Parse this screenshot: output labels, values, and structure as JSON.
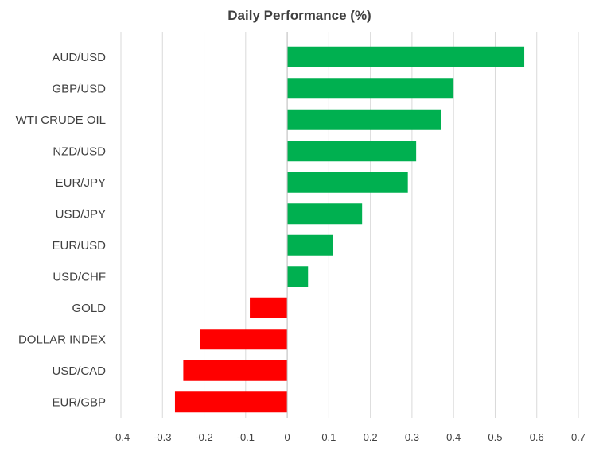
{
  "chart_data": {
    "type": "bar",
    "orientation": "horizontal",
    "title": "Daily Performance (%)",
    "xlabel": "",
    "ylabel": "",
    "categories": [
      "AUD/USD",
      "GBP/USD",
      "WTI CRUDE OIL",
      "NZD/USD",
      "EUR/JPY",
      "USD/JPY",
      "EUR/USD",
      "USD/CHF",
      "GOLD",
      "DOLLAR INDEX",
      "USD/CAD",
      "EUR/GBP"
    ],
    "values": [
      0.57,
      0.4,
      0.37,
      0.31,
      0.29,
      0.18,
      0.11,
      0.05,
      -0.09,
      -0.21,
      -0.25,
      -0.27
    ],
    "xlim": [
      -0.4,
      0.7
    ],
    "x_ticks": [
      "-0.4",
      "-0.3",
      "-0.2",
      "-0.1",
      "0",
      "0.1",
      "0.2",
      "0.3",
      "0.4",
      "0.5",
      "0.6",
      "0.7"
    ],
    "grid": "vertical",
    "legend": "none",
    "colors": {
      "positive": "#00B050",
      "negative": "#FF0000",
      "grid": "#D9D9D9",
      "text": "#404040"
    }
  }
}
